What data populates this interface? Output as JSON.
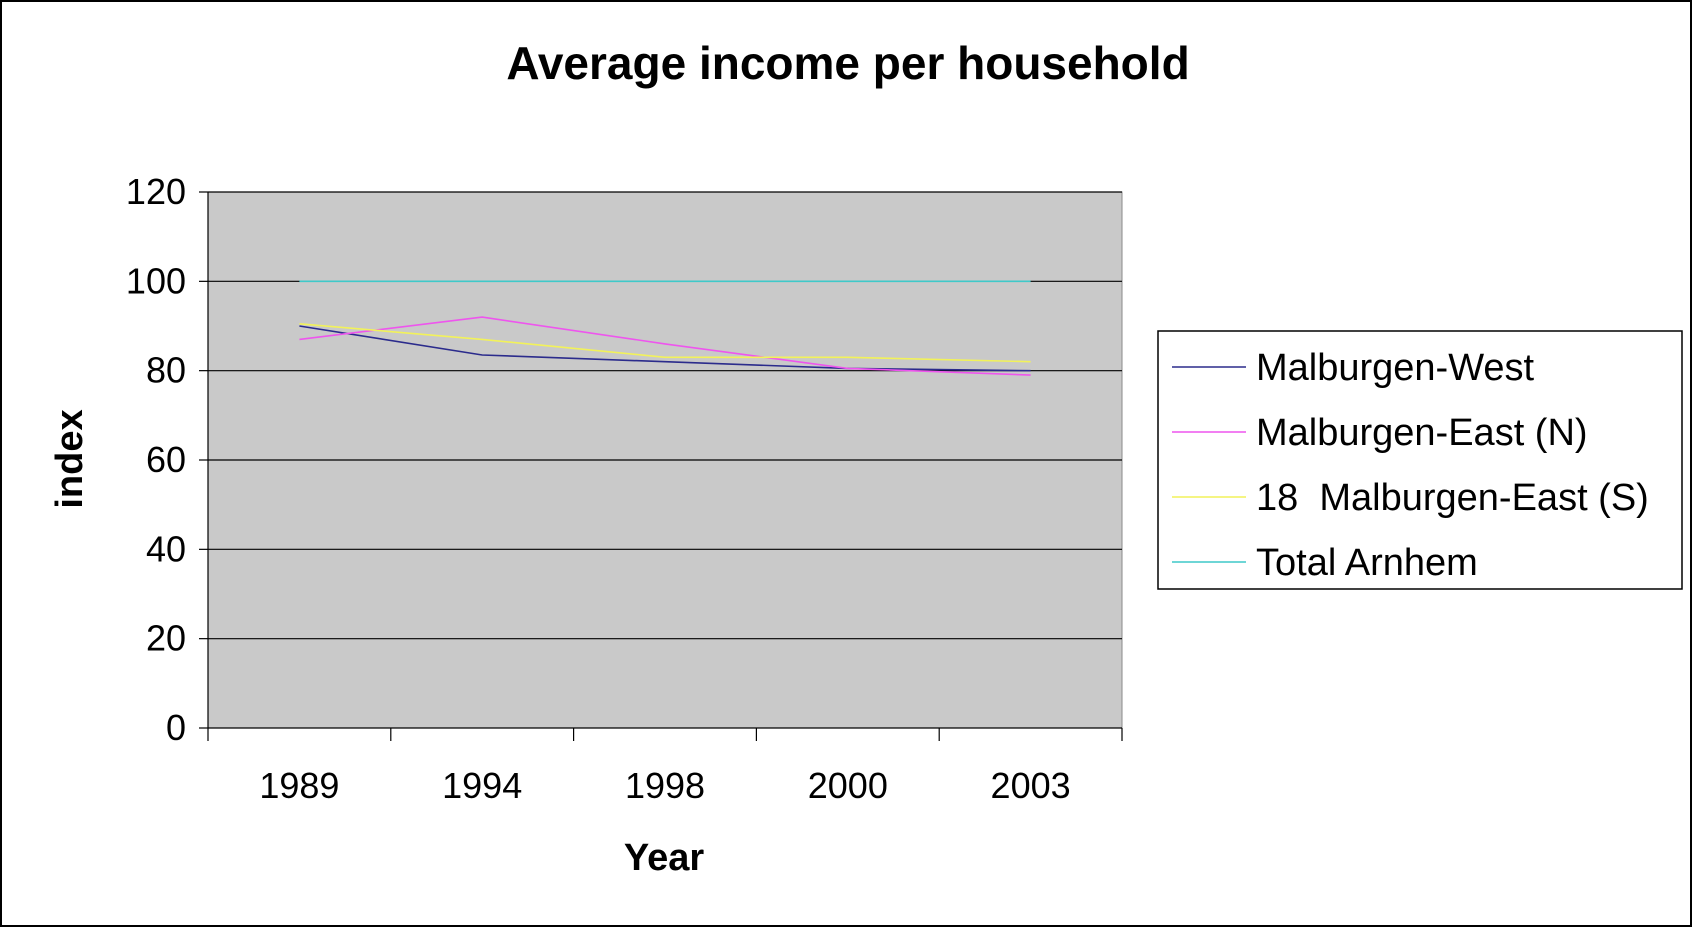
{
  "chart_data": {
    "type": "line",
    "title": "Average income per household",
    "xlabel": "Year",
    "ylabel": "index",
    "categories": [
      "1989",
      "1994",
      "1998",
      "2000",
      "2003"
    ],
    "ylim": [
      0,
      120
    ],
    "yticks": [
      "0",
      "20",
      "40",
      "60",
      "80",
      "100",
      "120"
    ],
    "grid": true,
    "legend_position": "right",
    "plot_background": "#c9c9c9",
    "series": [
      {
        "name": "Malburgen-West",
        "color": "#2b2b8c",
        "values": [
          90,
          83.5,
          82,
          80.5,
          80
        ]
      },
      {
        "name": "Malburgen-East (N)",
        "color": "#ee55ee",
        "values": [
          87,
          92,
          86,
          80.5,
          79
        ]
      },
      {
        "name": "18  Malburgen-East (S)",
        "color": "#f2f25a",
        "values": [
          90.5,
          87,
          83,
          83,
          82
        ]
      },
      {
        "name": "Total Arnhem",
        "color": "#3fc9c9",
        "values": [
          100,
          100,
          100,
          100,
          100
        ]
      }
    ]
  }
}
